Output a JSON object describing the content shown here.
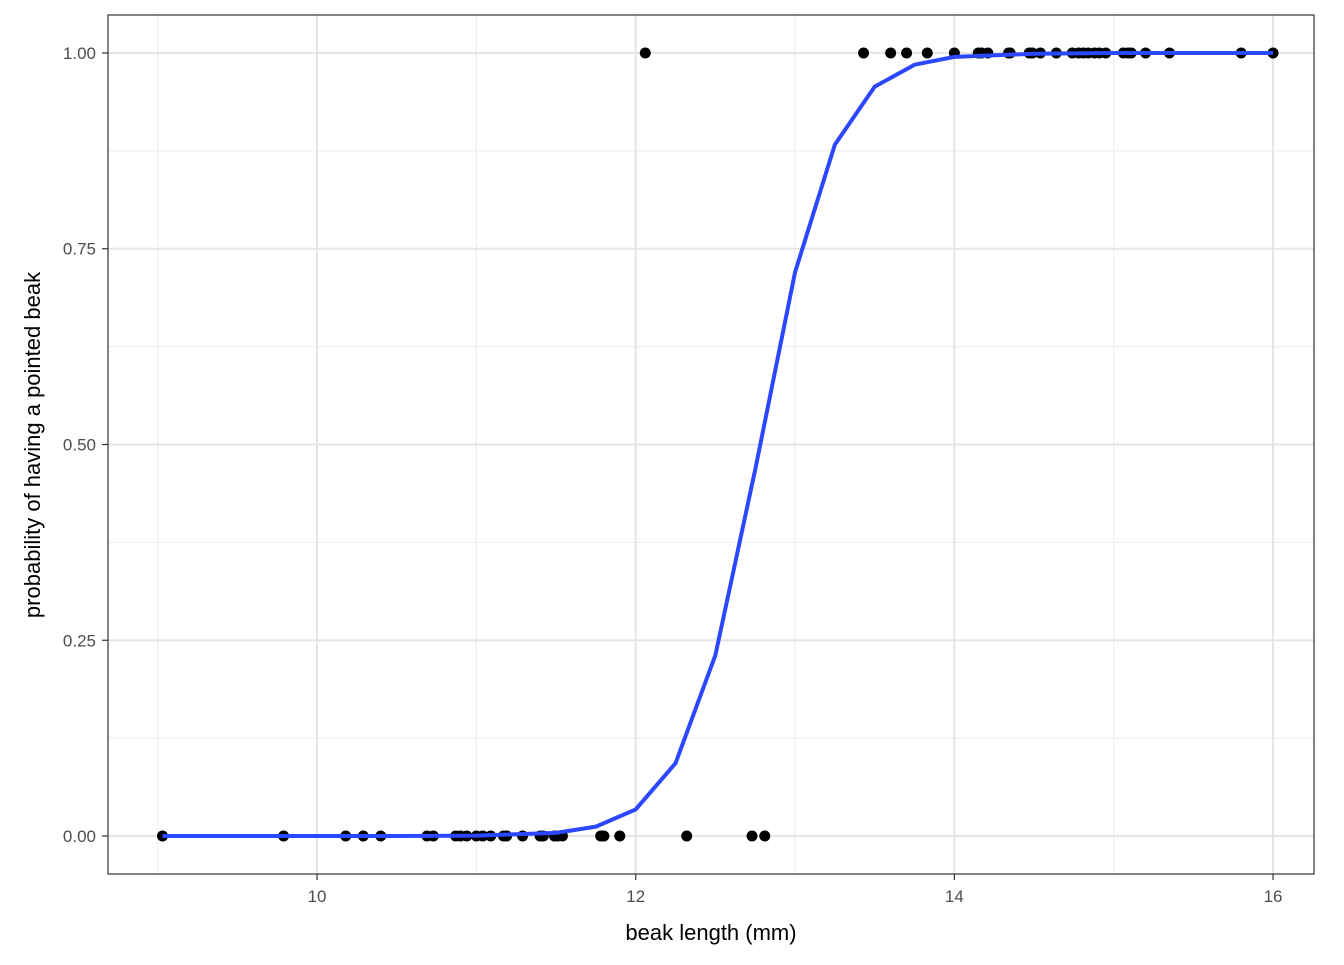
{
  "chart_data": {
    "type": "scatter",
    "xlabel": "beak length (mm)",
    "ylabel": "probability of having a pointed beak",
    "xlim": [
      8.688,
      16.257
    ],
    "ylim": [
      -0.0485,
      1.0485
    ],
    "xticks": [
      10,
      12,
      14,
      16
    ],
    "yticks": [
      {
        "value": 0,
        "label": "0.00"
      },
      {
        "value": 0.25,
        "label": "0.25"
      },
      {
        "value": 0.5,
        "label": "0.50"
      },
      {
        "value": 0.75,
        "label": "0.75"
      },
      {
        "value": 1,
        "label": "1.00"
      }
    ],
    "x_minor_ticks": [
      9,
      11,
      13,
      15
    ],
    "y_minor_ticks": [
      0.125,
      0.375,
      0.625,
      0.875
    ],
    "grid": true,
    "series": [
      {
        "type": "scatter",
        "color": "#000000",
        "x": [
          9.03,
          9.79,
          10.18,
          10.29,
          10.4,
          10.69,
          10.73,
          10.87,
          10.9,
          10.94,
          11.0,
          11.04,
          11.09,
          11.17,
          11.19,
          11.29,
          11.4,
          11.42,
          11.49,
          11.51,
          11.54,
          11.78,
          11.8,
          11.9,
          12.32,
          12.73,
          12.81,
          12.06,
          13.43,
          13.6,
          13.7,
          13.83,
          14.0,
          14.15,
          14.17,
          14.21,
          14.34,
          14.35,
          14.47,
          14.49,
          14.54,
          14.64,
          14.74,
          14.78,
          14.81,
          14.84,
          14.88,
          14.91,
          14.95,
          15.06,
          15.09,
          15.11,
          15.2,
          15.35,
          15.8,
          16.0
        ],
        "values": [
          0,
          0,
          0,
          0,
          0,
          0,
          0,
          0,
          0,
          0,
          0,
          0,
          0,
          0,
          0,
          0,
          0,
          0,
          0,
          0,
          0,
          0,
          0,
          0,
          0,
          0,
          0,
          1,
          1,
          1,
          1,
          1,
          1,
          1,
          1,
          1,
          1,
          1,
          1,
          1,
          1,
          1,
          1,
          1,
          1,
          1,
          1,
          1,
          1,
          1,
          1,
          1,
          1,
          1,
          1,
          1
        ]
      },
      {
        "type": "line",
        "color": "#2b47ff",
        "x": [
          9.03,
          9.5,
          10,
          10.5,
          11,
          11.5,
          11.75,
          12,
          12.25,
          12.5,
          12.75,
          13,
          13.25,
          13.5,
          13.75,
          14,
          14.5,
          15,
          15.5,
          16
        ],
        "values": [
          0,
          0,
          0,
          0.0001,
          0.0005,
          0.004,
          0.012,
          0.034,
          0.093,
          0.231,
          0.468,
          0.72,
          0.883,
          0.957,
          0.985,
          0.995,
          0.999,
          1,
          1,
          1
        ]
      }
    ]
  }
}
